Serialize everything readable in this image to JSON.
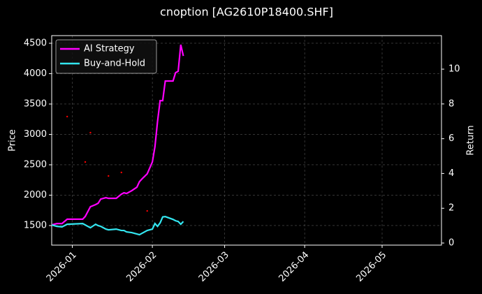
{
  "chart_data": {
    "type": "line",
    "title": "cnoption [AG2610P18400.SHF]",
    "ylabel": "Price",
    "y2label": "Return",
    "xlim": [
      "2025-12-24",
      "2026-05-24"
    ],
    "xticks": [
      {
        "value": "2026-01-01",
        "label": "2026-01"
      },
      {
        "value": "2026-02-01",
        "label": "2026-02"
      },
      {
        "value": "2026-03-01",
        "label": "2026-03"
      },
      {
        "value": "2026-04-01",
        "label": "2026-04"
      },
      {
        "value": "2026-05-01",
        "label": "2026-05"
      }
    ],
    "ylim": [
      1178,
      4626
    ],
    "yticks": [
      1500,
      2000,
      2500,
      3000,
      3500,
      4000,
      4500
    ],
    "y2lim": [
      -0.12,
      11.93
    ],
    "y2ticks": [
      0,
      2,
      4,
      6,
      8,
      10
    ],
    "grid": true,
    "legend": "upper left",
    "x": [
      "2025-12-24",
      "2025-12-26",
      "2025-12-28",
      "2025-12-30",
      "2026-01-05",
      "2026-01-06",
      "2026-01-08",
      "2026-01-10",
      "2026-01-11",
      "2026-01-12",
      "2026-01-14",
      "2026-01-15",
      "2026-01-18",
      "2026-01-20",
      "2026-01-21",
      "2026-01-22",
      "2026-01-24",
      "2026-01-26",
      "2026-01-27",
      "2026-01-28",
      "2026-01-30",
      "2026-02-01",
      "2026-02-02",
      "2026-02-03",
      "2026-02-04",
      "2026-02-05",
      "2026-02-06",
      "2026-02-09",
      "2026-02-10",
      "2026-02-11",
      "2026-02-12",
      "2026-02-13"
    ],
    "series": [
      {
        "name": "AI Strategy",
        "color": "#ff00ff",
        "axis": "y2",
        "values": [
          1.04,
          1.12,
          1.12,
          1.37,
          1.37,
          1.53,
          2.09,
          2.21,
          2.29,
          2.53,
          2.61,
          2.57,
          2.57,
          2.81,
          2.89,
          2.85,
          3.01,
          3.21,
          3.53,
          3.69,
          3.98,
          4.66,
          5.54,
          6.99,
          8.19,
          8.19,
          9.32,
          9.32,
          9.8,
          9.88,
          11.41,
          10.76
        ]
      },
      {
        "name": "Buy-and-Hold",
        "color": "#33e6f0",
        "axis": "y2",
        "values": [
          1.04,
          0.96,
          0.93,
          1.08,
          1.12,
          1.04,
          0.88,
          1.08,
          1.0,
          0.96,
          0.8,
          0.76,
          0.8,
          0.72,
          0.72,
          0.64,
          0.6,
          0.52,
          0.48,
          0.56,
          0.72,
          0.8,
          1.12,
          0.96,
          1.16,
          1.5,
          1.52,
          1.36,
          1.28,
          1.24,
          1.08,
          1.24
        ]
      }
    ],
    "price_points": {
      "color": "#ff0000",
      "x": [
        "2025-12-30",
        "2026-01-06",
        "2026-01-08",
        "2026-01-15",
        "2026-01-20",
        "2026-01-30"
      ],
      "values": [
        3293,
        2546,
        3029,
        2316,
        2374,
        1741
      ]
    }
  }
}
